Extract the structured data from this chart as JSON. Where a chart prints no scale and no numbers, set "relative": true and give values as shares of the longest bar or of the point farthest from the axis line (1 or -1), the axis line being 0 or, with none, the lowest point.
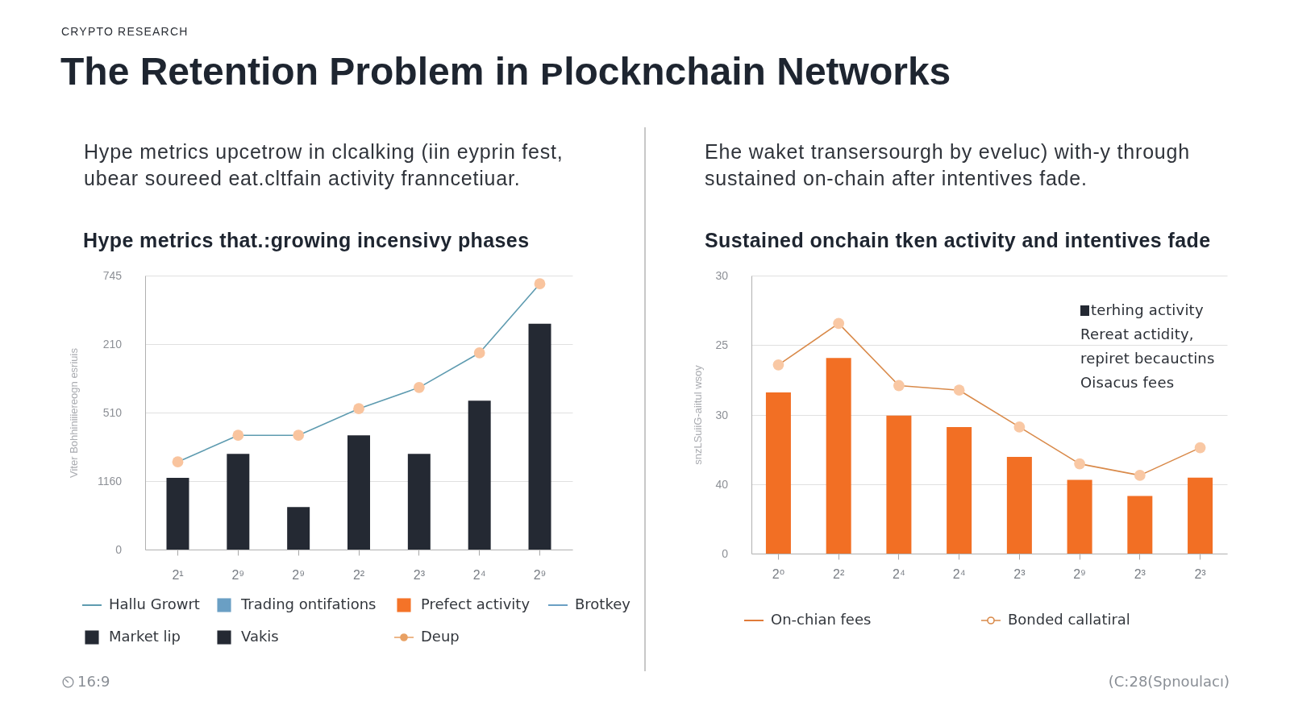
{
  "chart_data": [
    {
      "type": "bar",
      "title": "Hype metrics that.:growing incensivy phases",
      "subtitle": "Hype metrics upcetrow in clcalking (iin eyprin fest, ubear soureed eat.cltfain activity franncetiuar.",
      "ylabel": "Viter Bohhiniiiereogn esriuis",
      "categories": [
        "2¹",
        "2⁹",
        "2⁹",
        "2²",
        "2³",
        "2⁴",
        "2⁹"
      ],
      "relative": true,
      "series": [
        {
          "name": "Hallu Growrt",
          "type": "line",
          "color": "#5e9bb0",
          "colors": [
            "#f9c49e",
            "#f9c49e",
            "#f9c49e",
            "#f9c49e",
            "#f9c49e",
            "#f9c49e",
            "#f9c49e"
          ],
          "values": [
            0.33,
            0.43,
            0.43,
            0.53,
            0.61,
            0.74,
            1
          ]
        },
        {
          "name": "Trading ontifations",
          "type": "bar",
          "color": "#6a9fc4",
          "values": [
            null,
            null,
            null,
            null,
            null,
            null,
            null
          ]
        },
        {
          "name": "Prefect activity",
          "type": "bar",
          "color": "#f47328",
          "values": [
            null,
            null,
            null,
            null,
            null,
            null,
            null
          ]
        },
        {
          "name": "Brotkey",
          "type": "line",
          "color": "#6a9fc4",
          "values": [
            null,
            null,
            null,
            null,
            null,
            null,
            null
          ]
        },
        {
          "name": "Market lip",
          "type": "bar",
          "color": "#242933",
          "values": [
            0.27,
            0.36,
            0.16,
            0.43,
            0.36,
            0.56,
            0.85
          ]
        },
        {
          "name": "Vakis",
          "type": "bar",
          "color": "#242933",
          "values": [
            null,
            null,
            null,
            null,
            null,
            null,
            null
          ]
        },
        {
          "name": "Deup",
          "type": "line",
          "color": "#e8a063",
          "marker": "circle",
          "values": [
            null,
            null,
            null,
            null,
            null,
            null,
            null
          ]
        }
      ],
      "grid": "y",
      "legend": "bottom",
      "marker": "circle",
      "annotations": [
        "CRYPTO RESEARCH",
        "The Retention Problem in ᴘlocknchain Networks",
        "16:9",
        "745",
        "210",
        "510",
        "1160",
        "0"
      ]
    },
    {
      "type": "bar",
      "title": "Sustained onchain tken activity and intentives fade",
      "subtitle": "Ehe waket transersourgh by eveluc) with-y through sustained on-chain after intentives fade.",
      "ylabel": "snzLSuiiG-aiitul wsoy",
      "categories": [
        "2⁰",
        "2²",
        "2⁴",
        "2⁴",
        "2³",
        "2⁹",
        "2³",
        "2³"
      ],
      "relative": true,
      "series": [
        {
          "type": "bar",
          "color": "#f26f24",
          "values": [
            0.7,
            0.85,
            0.6,
            0.55,
            0.42,
            0.32,
            0.25,
            0.33
          ]
        },
        {
          "name": "On-chian fees",
          "type": "line",
          "color": "#e07b39",
          "values": [
            null,
            null,
            null,
            null,
            null,
            null,
            null,
            null
          ]
        },
        {
          "name": "Bonded callatiral",
          "type": "line",
          "color": "#d98a4a",
          "marker": "circle",
          "colors": [
            "#f9c8a4",
            "#f9c8a4",
            "#f9c8a4",
            "#f9c8a4",
            "#f9c8a4",
            "#f9c8a4",
            "#f9c8a4",
            "#f9c8a4"
          ],
          "values": [
            0.82,
            1,
            0.73,
            0.71,
            0.55,
            0.39,
            0.34,
            0.46
          ]
        }
      ],
      "grid": "y",
      "legend": "bottom",
      "annotations": [
        "terhing activity",
        "Rereat actidity,",
        "repiret becauctins",
        "Oisacus fees",
        "(C:28(Spnoulacı)",
        "30",
        "25",
        "30",
        "40",
        "0"
      ]
    }
  ]
}
